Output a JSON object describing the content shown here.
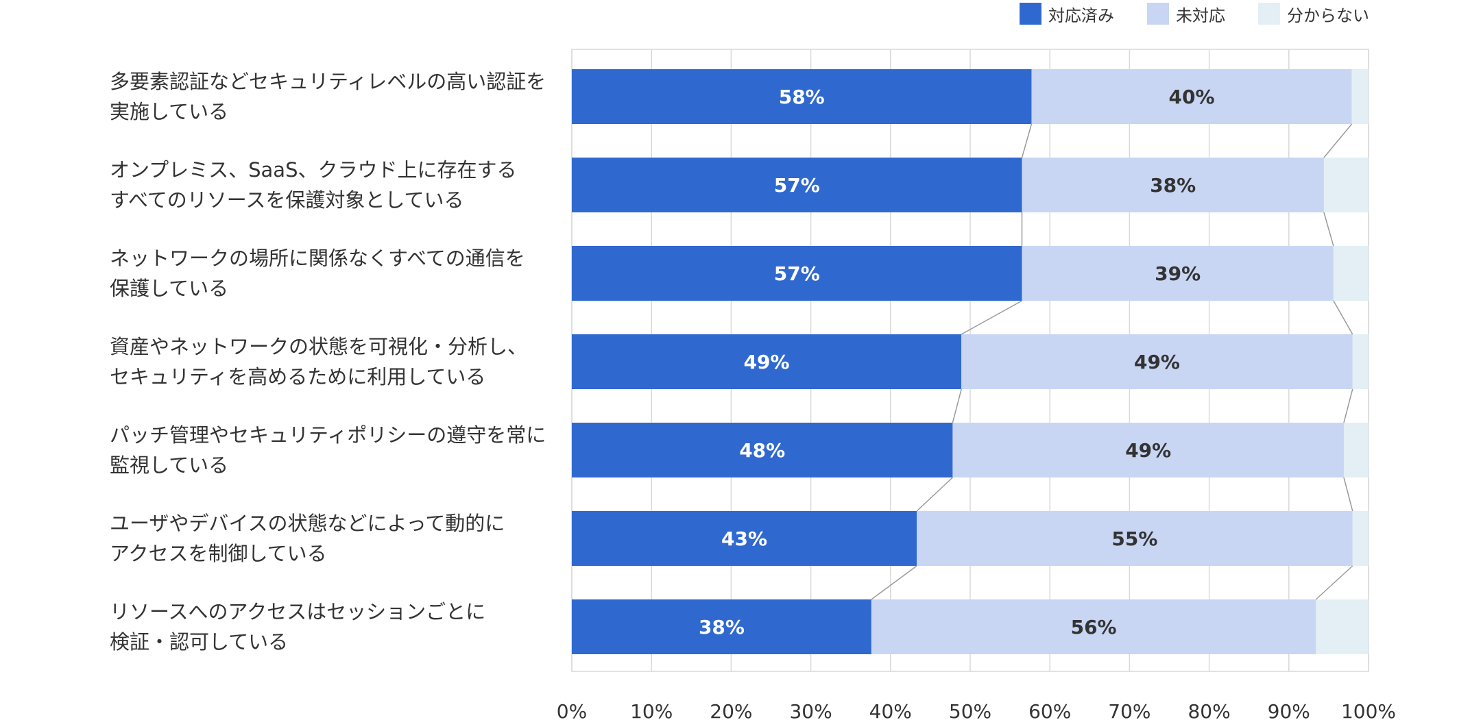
{
  "chart_data": {
    "type": "bar",
    "orientation": "horizontal",
    "stacked": true,
    "percent": true,
    "categories": [
      "多要素認証などセキュリティレベルの高い認証を\n実施している",
      "オンプレミス、SaaS、クラウド上に存在する\nすべてのリソースを保護対象としている",
      "ネットワークの場所に関係なくすべての通信を\n保護している",
      "資産やネットワークの状態を可視化・分析し、\n セキュリティを高めるために利用している",
      "パッチ管理やセキュリティポリシーの遵守を常に\n監視している",
      "ユーザやデバイスの状態などによって動的に\nアクセスを制御している",
      "リソースへのアクセスはセッションごとに\n検証・認可している"
    ],
    "series": [
      {
        "name": "対応済み",
        "color": "#2f69d0",
        "values": [
          57.7,
          56.5,
          56.5,
          48.9,
          47.8,
          43.3,
          37.6
        ],
        "labels": [
          "58%",
          "57%",
          "57%",
          "49%",
          "48%",
          "43%",
          "38%"
        ]
      },
      {
        "name": "未対応",
        "color": "#c8d6f3",
        "values": [
          40.2,
          37.9,
          39.1,
          49.1,
          49.1,
          54.7,
          55.8
        ],
        "labels": [
          "40%",
          "38%",
          "39%",
          "49%",
          "49%",
          "55%",
          "56%"
        ]
      },
      {
        "name": "分からない",
        "color": "#e3eff5",
        "values": [
          2.1,
          5.6,
          4.4,
          2.0,
          3.1,
          2.0,
          6.6
        ],
        "labels": [
          "",
          "",
          "",
          "",
          "",
          "",
          ""
        ]
      }
    ],
    "xlim": [
      0,
      100
    ],
    "xticks": [
      "0%",
      "10%",
      "20%",
      "30%",
      "40%",
      "50%",
      "60%",
      "70%",
      "80%",
      "90%",
      "100%"
    ],
    "grid": true,
    "legend": "top-right",
    "series_lines": true,
    "grid_color": "#d9d9d9",
    "text_color": "#333333"
  }
}
